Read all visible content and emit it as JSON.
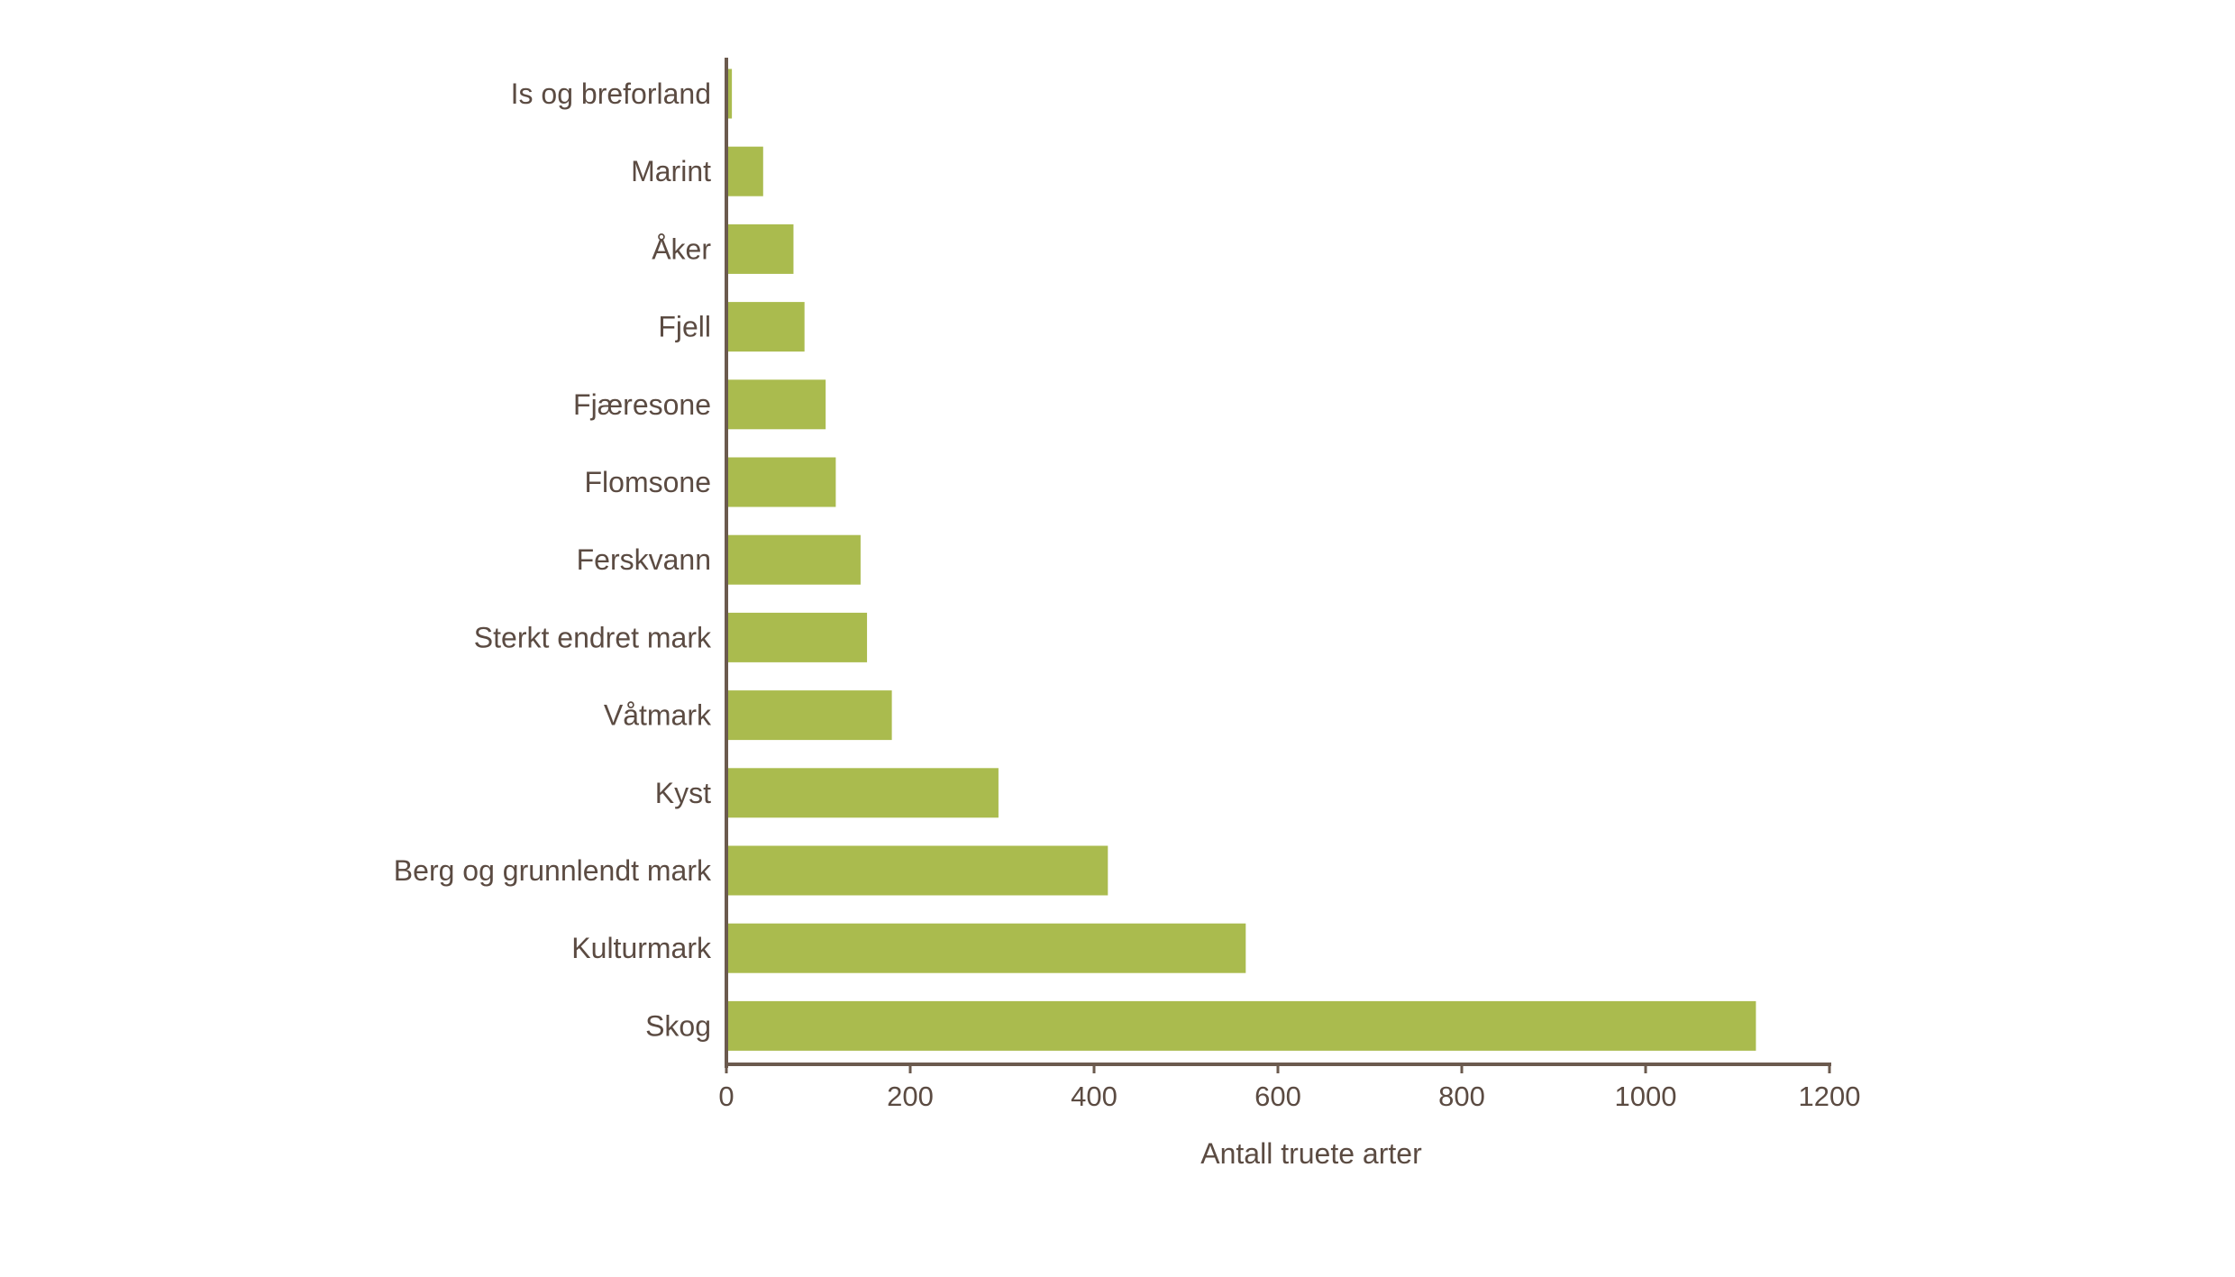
{
  "chart_data": {
    "type": "bar",
    "orientation": "horizontal",
    "title": "",
    "xlabel": "Antall truete arter",
    "ylabel": "",
    "xlim": [
      0,
      1200
    ],
    "xticks": [
      "0",
      "200",
      "400",
      "600",
      "800",
      "1000",
      "1200"
    ],
    "grid": false,
    "categories": [
      "Is og breforland",
      "Marint",
      "Åker",
      "Fjell",
      "Fjæresone",
      "Flomsone",
      "Ferskvann",
      "Sterkt endret mark",
      "Våtmark",
      "Kyst",
      "Berg og grunnlendt mark",
      "Kulturmark",
      "Skog"
    ],
    "values": [
      6,
      40,
      73,
      85,
      108,
      119,
      146,
      153,
      180,
      296,
      415,
      565,
      1120
    ],
    "colors": {
      "bar": "#aabb4e",
      "axis": "#6b5a4e",
      "text": "#5b4b42"
    }
  }
}
